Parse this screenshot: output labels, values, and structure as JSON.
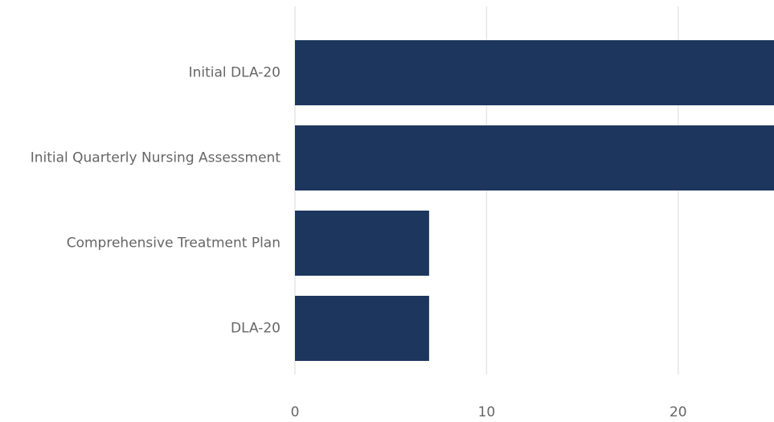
{
  "chart_data": {
    "type": "bar",
    "orientation": "horizontal",
    "categories": [
      "Initial DLA-20",
      "Initial Quarterly Nursing Assessment",
      "Comprehensive Treatment Plan",
      "DLA-20"
    ],
    "values": [
      25,
      25,
      7,
      7
    ],
    "color": "#1c365d",
    "xlim": [
      0,
      25
    ],
    "xticks": [
      0,
      10,
      20
    ],
    "grid": true
  }
}
